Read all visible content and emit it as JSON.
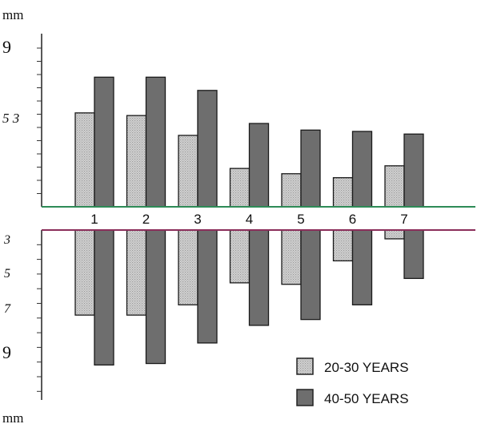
{
  "chart_data": {
    "type": "bar",
    "y_unit_label_top": "mm",
    "y_unit_label_bottom": "mm",
    "categories": [
      "1",
      "2",
      "3",
      "4",
      "5",
      "6",
      "7"
    ],
    "upper_panel": {
      "tick_labels": [
        "9",
        "5 3"
      ],
      "series": [
        {
          "name": "20-30 YEARS",
          "values": [
            7.1,
            6.9,
            5.4,
            2.9,
            2.5,
            2.2,
            3.1
          ]
        },
        {
          "name": "40-50 YEARS",
          "values": [
            9.8,
            9.8,
            8.8,
            6.3,
            5.8,
            5.7,
            5.5
          ]
        }
      ]
    },
    "lower_panel": {
      "tick_labels": [
        "3",
        "5",
        "7",
        "9"
      ],
      "series": [
        {
          "name": "20-30 YEARS",
          "values": [
            5.8,
            5.8,
            5.1,
            3.6,
            3.7,
            2.1,
            0.6
          ]
        },
        {
          "name": "40-50 YEARS",
          "values": [
            9.2,
            9.1,
            7.7,
            6.5,
            6.1,
            5.1,
            3.3
          ]
        }
      ]
    },
    "legend": {
      "placement": "bottom-right",
      "items": [
        {
          "label": "20-30 YEARS",
          "pattern": "dotted",
          "color": "#c8c8c8"
        },
        {
          "label": "40-50 YEARS",
          "pattern": "solid",
          "color": "#6e6e6e"
        }
      ]
    },
    "colors": {
      "light_bar": "#c8c8c8",
      "dark_bar": "#6e6e6e",
      "upper_baseline": "#2e8b57",
      "lower_baseline": "#8b2e5a"
    }
  }
}
